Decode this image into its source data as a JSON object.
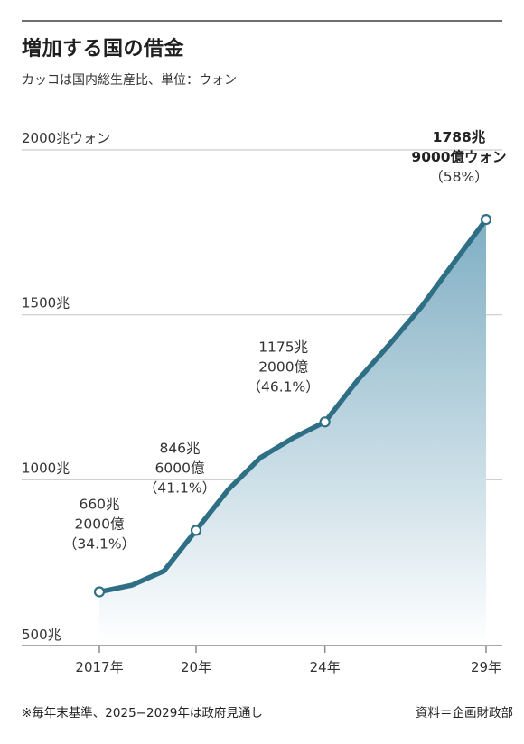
{
  "title": "増加する国の借金",
  "subtitle": "カッコは国内総生産比、単位：ウォン",
  "footnote": "※毎年末基準、2025−2029年は政府見通し",
  "source": "資料＝企画財政部",
  "chart_data": {
    "type": "area",
    "x": [
      2017,
      2018,
      2019,
      2020,
      2021,
      2022,
      2023,
      2024,
      2025,
      2026,
      2027,
      2028,
      2029
    ],
    "values": [
      660.2,
      680,
      723,
      846.6,
      970,
      1067,
      1126,
      1175.2,
      1300,
      1410,
      1525,
      1658,
      1788.9
    ],
    "ylim": [
      500,
      2000
    ],
    "y_ticks": [
      {
        "value": 2000,
        "label": "2000兆ウォン"
      },
      {
        "value": 1500,
        "label": "1500兆"
      },
      {
        "value": 1000,
        "label": "1000兆"
      },
      {
        "value": 500,
        "label": "500兆"
      }
    ],
    "x_ticks": [
      {
        "value": 2017,
        "label": "2017年"
      },
      {
        "value": 2020,
        "label": "20年"
      },
      {
        "value": 2024,
        "label": "24年"
      },
      {
        "value": 2029,
        "label": "29年"
      }
    ],
    "annotations": [
      {
        "x": 2017,
        "lines": [
          "660兆",
          "2000億",
          "（34.1%）"
        ]
      },
      {
        "x": 2020,
        "lines": [
          "846兆",
          "6000億",
          "（41.1%）"
        ]
      },
      {
        "x": 2024,
        "lines": [
          "1175兆",
          "2000億",
          "（46.1%）"
        ]
      },
      {
        "x": 2029,
        "lines": [
          "1788兆",
          "9000億ウォン",
          "（58%）"
        ]
      }
    ],
    "colors": {
      "line": "#2f6f86",
      "fill_top": "#7faec3",
      "fill_bottom": "#ffffff",
      "grid": "#c9c9c9",
      "axis": "#8a8a8a"
    },
    "grid": true,
    "legend": "none"
  }
}
